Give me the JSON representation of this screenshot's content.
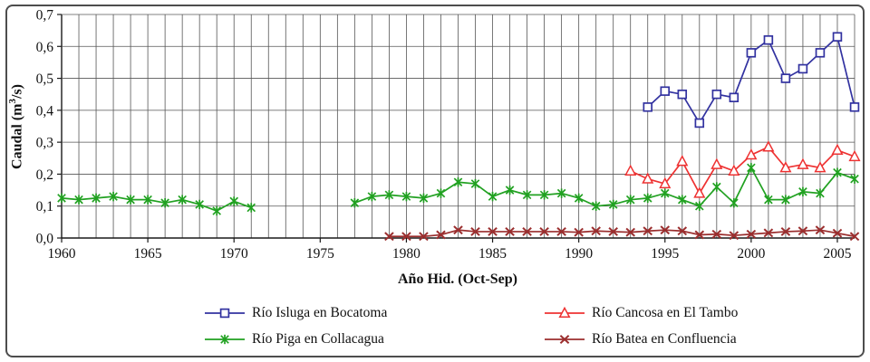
{
  "figure": {
    "background": "#ffffff",
    "border_color": "#4d4d4d",
    "gridline_color": "#565656",
    "axis_color": "#1a1a1a",
    "text_color": "#111111"
  },
  "chart_data": {
    "type": "line",
    "title": "",
    "xlabel": "Año Hid. (Oct-Sep)",
    "ylabel": "Caudal (m3/s)",
    "ylabel_parts": {
      "pre": "Caudal (m",
      "sup": "3",
      "post": "/s)"
    },
    "xlim": [
      1960,
      2006
    ],
    "ylim": [
      0.0,
      0.7
    ],
    "x_gridline_every_years": 1,
    "y_gridline_every": 0.1,
    "grid": true,
    "legend_position": "bottom",
    "decimal_separator": ",",
    "x_ticks": [
      1960,
      1965,
      1970,
      1975,
      1980,
      1985,
      1990,
      1995,
      2000,
      2005
    ],
    "x_tick_labels": [
      "1960",
      "1965",
      "1970",
      "1975",
      "1980",
      "1985",
      "1990",
      "1995",
      "2000",
      "2005"
    ],
    "y_ticks": [
      0.0,
      0.1,
      0.2,
      0.3,
      0.4,
      0.5,
      0.6,
      0.7
    ],
    "y_tick_labels": [
      "0,0",
      "0,1",
      "0,2",
      "0,3",
      "0,4",
      "0,5",
      "0,6",
      "0,7"
    ],
    "series": [
      {
        "key": "rio-isluga-en-bocatoma",
        "name": "Río Isluga en Bocatoma",
        "color": "#3232A0",
        "marker": "square",
        "points": [
          [
            1994,
            0.41
          ],
          [
            1995,
            0.46
          ],
          [
            1996,
            0.45
          ],
          [
            1997,
            0.36
          ],
          [
            1998,
            0.45
          ],
          [
            1999,
            0.44
          ],
          [
            2000,
            0.58
          ],
          [
            2001,
            0.62
          ],
          [
            2002,
            0.5
          ],
          [
            2003,
            0.53
          ],
          [
            2004,
            0.58
          ],
          [
            2005,
            0.63
          ],
          [
            2006,
            0.41
          ]
        ]
      },
      {
        "key": "rio-cancosa-en-el-tambo",
        "name": "Río Cancosa en El Tambo",
        "color": "#EE3232",
        "marker": "triangle",
        "points": [
          [
            1993,
            0.21
          ],
          [
            1994,
            0.185
          ],
          [
            1995,
            0.17
          ],
          [
            1996,
            0.24
          ],
          [
            1997,
            0.14
          ],
          [
            1998,
            0.23
          ],
          [
            1999,
            0.21
          ],
          [
            2000,
            0.26
          ],
          [
            2001,
            0.285
          ],
          [
            2002,
            0.22
          ],
          [
            2003,
            0.23
          ],
          [
            2004,
            0.22
          ],
          [
            2005,
            0.275
          ],
          [
            2006,
            0.255
          ]
        ]
      },
      {
        "key": "rio-piga-en-collacagua",
        "name": "Río Piga en Collacagua",
        "color": "#21A121",
        "marker": "star",
        "points": [
          [
            1960,
            0.125
          ],
          [
            1961,
            0.12
          ],
          [
            1962,
            0.125
          ],
          [
            1963,
            0.13
          ],
          [
            1964,
            0.12
          ],
          [
            1965,
            0.12
          ],
          [
            1966,
            0.11
          ],
          [
            1967,
            0.12
          ],
          [
            1968,
            0.105
          ],
          [
            1969,
            0.085
          ],
          [
            1970,
            0.115
          ],
          [
            1971,
            0.095
          ],
          [
            1977,
            0.11
          ],
          [
            1978,
            0.13
          ],
          [
            1979,
            0.135
          ],
          [
            1980,
            0.13
          ],
          [
            1981,
            0.125
          ],
          [
            1982,
            0.14
          ],
          [
            1983,
            0.175
          ],
          [
            1984,
            0.17
          ],
          [
            1985,
            0.13
          ],
          [
            1986,
            0.15
          ],
          [
            1987,
            0.135
          ],
          [
            1988,
            0.135
          ],
          [
            1989,
            0.14
          ],
          [
            1990,
            0.125
          ],
          [
            1991,
            0.1
          ],
          [
            1992,
            0.105
          ],
          [
            1993,
            0.12
          ],
          [
            1994,
            0.125
          ],
          [
            1995,
            0.14
          ],
          [
            1996,
            0.12
          ],
          [
            1997,
            0.1
          ],
          [
            1998,
            0.16
          ],
          [
            1999,
            0.11
          ],
          [
            2000,
            0.22
          ],
          [
            2001,
            0.12
          ],
          [
            2002,
            0.12
          ],
          [
            2003,
            0.145
          ],
          [
            2004,
            0.14
          ],
          [
            2005,
            0.205
          ],
          [
            2006,
            0.185
          ]
        ]
      },
      {
        "key": "rio-batea-en-confluencia",
        "name": "Río Batea en Confluencia",
        "color": "#9B2E2E",
        "marker": "x",
        "points": [
          [
            1979,
            0.005
          ],
          [
            1980,
            0.005
          ],
          [
            1981,
            0.005
          ],
          [
            1982,
            0.01
          ],
          [
            1983,
            0.025
          ],
          [
            1984,
            0.02
          ],
          [
            1985,
            0.02
          ],
          [
            1986,
            0.02
          ],
          [
            1987,
            0.02
          ],
          [
            1988,
            0.02
          ],
          [
            1989,
            0.02
          ],
          [
            1990,
            0.018
          ],
          [
            1991,
            0.022
          ],
          [
            1992,
            0.02
          ],
          [
            1993,
            0.018
          ],
          [
            1994,
            0.022
          ],
          [
            1995,
            0.025
          ],
          [
            1996,
            0.022
          ],
          [
            1997,
            0.01
          ],
          [
            1998,
            0.012
          ],
          [
            1999,
            0.008
          ],
          [
            2000,
            0.012
          ],
          [
            2001,
            0.016
          ],
          [
            2002,
            0.02
          ],
          [
            2003,
            0.022
          ],
          [
            2004,
            0.025
          ],
          [
            2005,
            0.015
          ],
          [
            2006,
            0.005
          ]
        ]
      }
    ]
  }
}
